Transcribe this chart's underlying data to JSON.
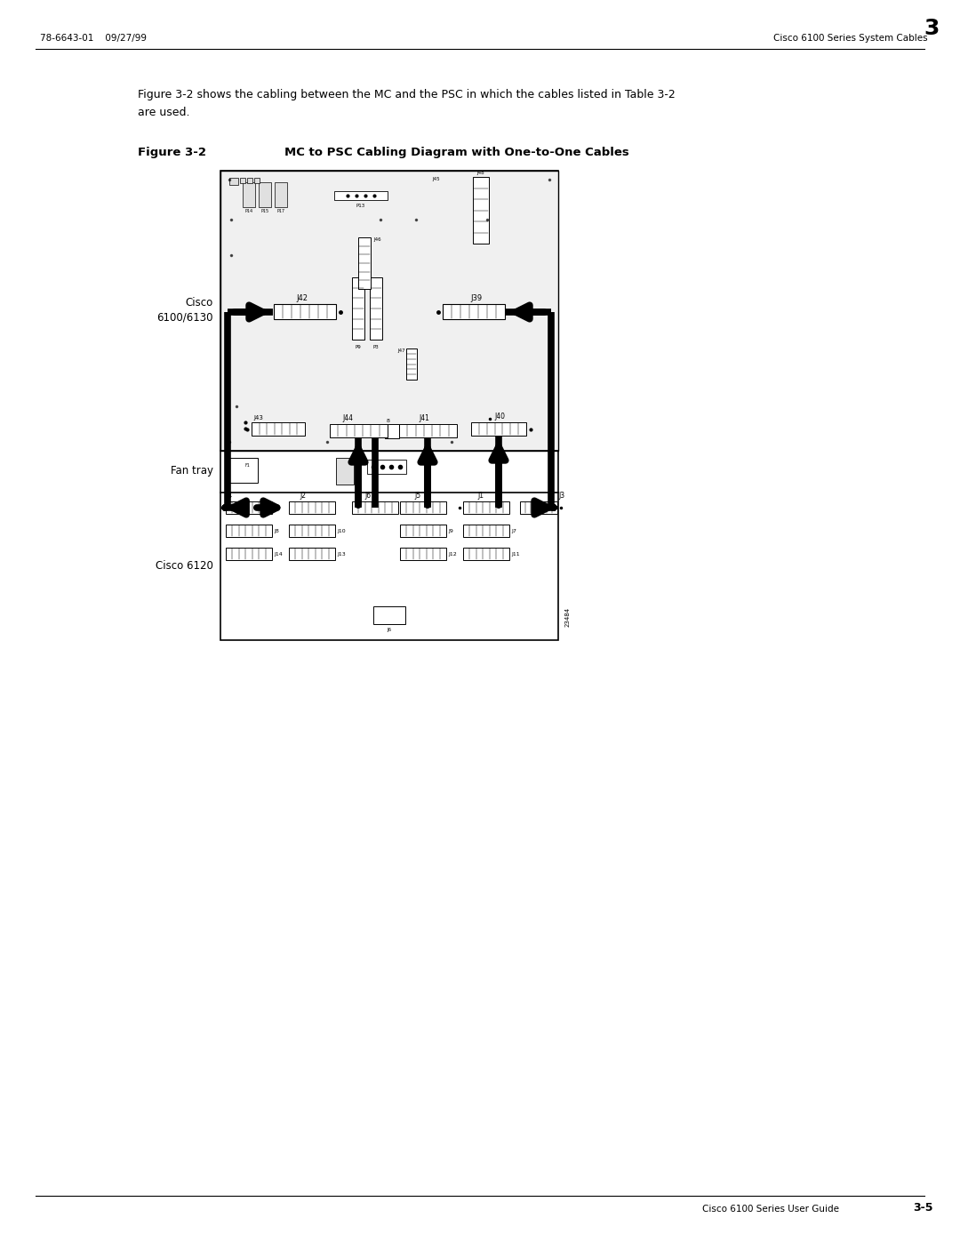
{
  "page_width": 10.8,
  "page_height": 13.97,
  "bg_color": "#ffffff",
  "header_left": "78-6643-01    09/27/99",
  "header_right": "Cisco 6100 Series System Cables",
  "header_right_num": "3",
  "footer_right": "Cisco 6100 Series User Guide",
  "footer_right_num": "3-5",
  "body_text_line1": "Figure 3-2 shows the cabling between the MC and the PSC in which the cables listed in Table 3-2",
  "body_text_line2": "are used.",
  "figure_label": "Figure 3-2",
  "figure_title": "MC to PSC Cabling Diagram with One-to-One Cables",
  "label_cisco_6100": "Cisco\n6100/6130",
  "label_fan_tray": "Fan tray",
  "label_cisco_6120": "Cisco 6120",
  "serial_number": "23484"
}
